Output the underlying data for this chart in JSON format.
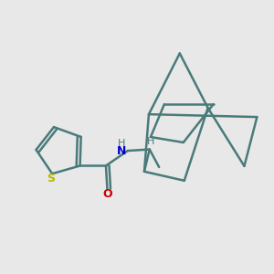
{
  "bg_color": "#e8e8e8",
  "bond_color": "#4a7a7a",
  "S_color": "#b8b800",
  "N_color": "#0000cc",
  "O_color": "#cc0000",
  "H_color": "#4a7a7a",
  "bond_width": 1.8,
  "figsize": [
    3.0,
    3.0
  ],
  "dpi": 100,
  "xlim": [
    0,
    10
  ],
  "ylim": [
    0,
    10
  ]
}
